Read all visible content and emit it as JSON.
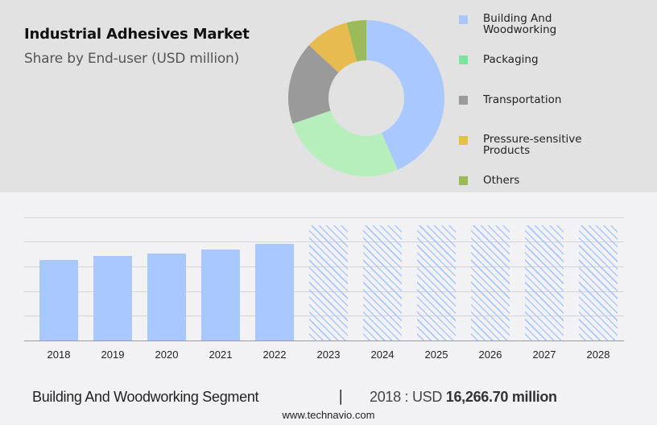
{
  "header": {
    "title": "Industrial Adhesives Market",
    "subtitle": "Share by End-user (USD million)"
  },
  "colors": {
    "top_panel_bg": "#e2e2e2",
    "page_bg": "#f2f2f4",
    "bar_color": "#a8c8ff"
  },
  "chart_data": [
    {
      "type": "pie",
      "title": "Industrial Adhesives Market",
      "subtitle": "Share by End-user (USD million)",
      "donut": true,
      "categories": [
        "Building And Woodworking",
        "Packaging",
        "Transportation",
        "Pressure-sensitive Products",
        "Others"
      ],
      "values": [
        43,
        26,
        17,
        9,
        4
      ],
      "unit": "approx. % share (estimated from slice angles)",
      "slice_colors": [
        "#a8c8ff",
        "#b6efbb",
        "#9a9a9a",
        "#e8bb50",
        "#9bbb59"
      ],
      "legend_colors": [
        "#a8c8ff",
        "#7ee29a",
        "#9a9a9a",
        "#e6c14a",
        "#9bbb59"
      ],
      "legend_position": "right"
    },
    {
      "type": "bar",
      "title": "Building And Woodworking Segment",
      "categories": [
        "2018",
        "2019",
        "2020",
        "2021",
        "2022",
        "2023",
        "2024",
        "2025",
        "2026",
        "2027",
        "2028"
      ],
      "values": [
        16266.7,
        17100,
        17650,
        18450,
        19550,
        null,
        null,
        null,
        null,
        null,
        null
      ],
      "forecast_categories": [
        "2023",
        "2024",
        "2025",
        "2026",
        "2027",
        "2028"
      ],
      "forecast_style": "hatched, value not disclosed",
      "xlabel": "",
      "ylabel": "",
      "y_axis_labels_shown": false,
      "grid": true,
      "gridlines": 5,
      "ylim": [
        0,
        25000
      ]
    }
  ],
  "legend": {
    "items": [
      {
        "label_line1": "Building And",
        "label_line2": "Woodworking",
        "color": "#a8c8ff"
      },
      {
        "label_line1": "Packaging",
        "label_line2": "",
        "color": "#7ee29a"
      },
      {
        "label_line1": "Transportation",
        "label_line2": "",
        "color": "#9a9a9a"
      },
      {
        "label_line1": "Pressure-sensitive",
        "label_line2": "Products",
        "color": "#e6c14a"
      },
      {
        "label_line1": "Others",
        "label_line2": "",
        "color": "#9bbb59"
      }
    ]
  },
  "bar_chart": {
    "years": [
      "2018",
      "2019",
      "2020",
      "2021",
      "2022",
      "2023",
      "2024",
      "2025",
      "2026",
      "2027",
      "2028"
    ]
  },
  "footer": {
    "segment_label": "Building And Woodworking Segment",
    "separator": "|",
    "year_prefix": "2018 : USD ",
    "value": "16,266.70 million",
    "url": "www.technavio.com"
  }
}
